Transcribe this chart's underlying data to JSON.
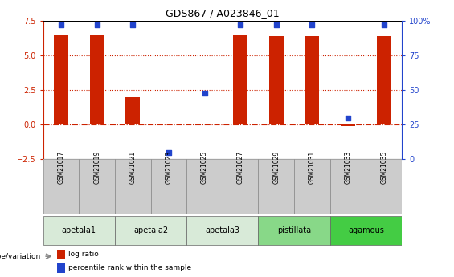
{
  "title": "GDS867 / A023846_01",
  "samples": [
    "GSM21017",
    "GSM21019",
    "GSM21021",
    "GSM21023",
    "GSM21025",
    "GSM21027",
    "GSM21029",
    "GSM21031",
    "GSM21033",
    "GSM21035"
  ],
  "log_ratio": [
    6.5,
    6.5,
    2.0,
    0.05,
    0.05,
    6.5,
    6.4,
    6.4,
    -0.1,
    6.4
  ],
  "percentile_rank": [
    97,
    97,
    97,
    5,
    48,
    97,
    97,
    97,
    30,
    97
  ],
  "ylim_left": [
    -2.5,
    7.5
  ],
  "ylim_right": [
    0,
    100
  ],
  "yticks_left": [
    -2.5,
    0,
    2.5,
    5,
    7.5
  ],
  "yticks_right": [
    0,
    25,
    50,
    75,
    100
  ],
  "hlines": [
    0,
    2.5,
    5
  ],
  "hline_styles": [
    "dashdot",
    "dotted",
    "dotted"
  ],
  "groups": [
    {
      "label": "apetala1",
      "start": 0,
      "end": 2,
      "color": "#d8ead8"
    },
    {
      "label": "apetala2",
      "start": 2,
      "end": 4,
      "color": "#d8ead8"
    },
    {
      "label": "apetala3",
      "start": 4,
      "end": 6,
      "color": "#d8ead8"
    },
    {
      "label": "pistillata",
      "start": 6,
      "end": 8,
      "color": "#88d888"
    },
    {
      "label": "agamous",
      "start": 8,
      "end": 10,
      "color": "#44cc44"
    }
  ],
  "bar_color": "#cc2200",
  "dot_color": "#2244cc",
  "left_tick_color": "#cc2200",
  "right_tick_color": "#2244cc",
  "legend_items": [
    "log ratio",
    "percentile rank within the sample"
  ],
  "genotype_label": "genotype/variation"
}
